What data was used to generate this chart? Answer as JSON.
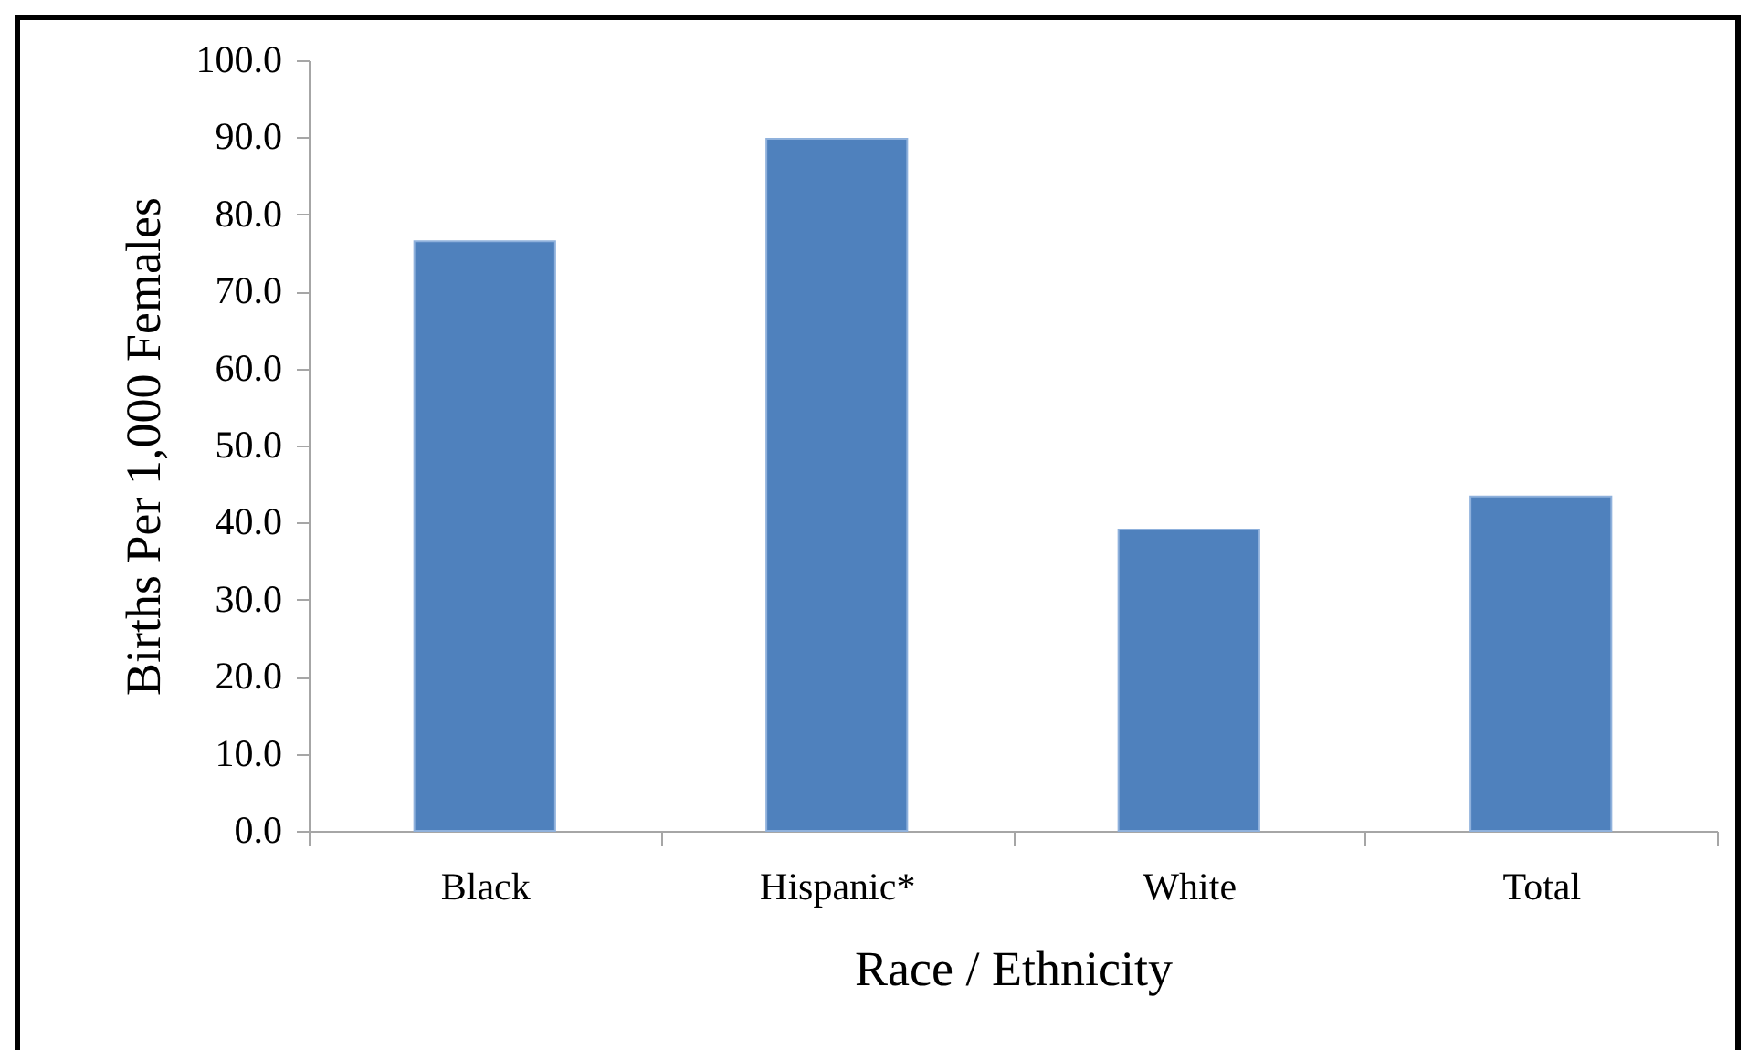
{
  "chart_data": {
    "type": "bar",
    "xlabel": "Race / Ethnicity",
    "ylabel": "Births Per 1,000 Females",
    "categories": [
      "Black",
      "Hispanic*",
      "White",
      "Total"
    ],
    "values": [
      76.5,
      89.8,
      39.1,
      43.4
    ],
    "color": "#4f81bd",
    "ylim": [
      0,
      100
    ],
    "yticks": [
      {
        "value": 0,
        "label": "0.0"
      },
      {
        "value": 10,
        "label": "10.0"
      },
      {
        "value": 20,
        "label": "20.0"
      },
      {
        "value": 30,
        "label": "30.0"
      },
      {
        "value": 40,
        "label": "40.0"
      },
      {
        "value": 50,
        "label": "50.0"
      },
      {
        "value": 60,
        "label": "60.0"
      },
      {
        "value": 70,
        "label": "70.0"
      },
      {
        "value": 80,
        "label": "80.0"
      },
      {
        "value": 90,
        "label": "90.0"
      },
      {
        "value": 100,
        "label": "100.0"
      }
    ],
    "grid": false
  }
}
